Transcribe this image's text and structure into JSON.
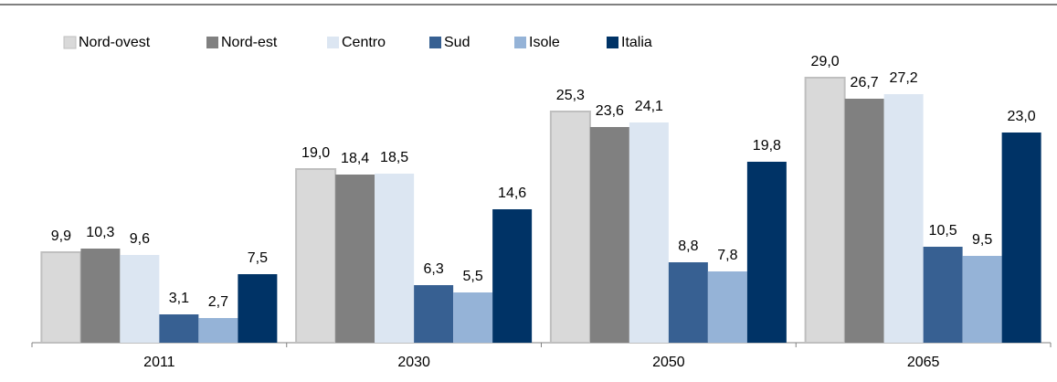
{
  "chart_data": {
    "type": "bar",
    "categories": [
      "2011",
      "2030",
      "2050",
      "2065"
    ],
    "series": [
      {
        "name": "Nord-ovest",
        "color": "#d9d9d9",
        "values": [
          9.9,
          19.0,
          25.3,
          29.0
        ],
        "value_labels": [
          "9,9",
          "19,0",
          "25,3",
          "29,0"
        ]
      },
      {
        "name": "Nord-est",
        "color": "#808080",
        "values": [
          10.3,
          18.4,
          23.6,
          26.7
        ],
        "value_labels": [
          "10,3",
          "18,4",
          "23,6",
          "26,7"
        ]
      },
      {
        "name": "Centro",
        "color": "#dce6f2",
        "values": [
          9.6,
          18.5,
          24.1,
          27.2
        ],
        "value_labels": [
          "9,6",
          "18,5",
          "24,1",
          "27,2"
        ]
      },
      {
        "name": "Sud",
        "color": "#376092",
        "values": [
          3.1,
          6.3,
          8.8,
          10.5
        ],
        "value_labels": [
          "3,1",
          "6,3",
          "8,8",
          "10,5"
        ]
      },
      {
        "name": "Isole",
        "color": "#95b3d7",
        "values": [
          2.7,
          5.5,
          7.8,
          9.5
        ],
        "value_labels": [
          "2,7",
          "5,5",
          "7,8",
          "9,5"
        ]
      },
      {
        "name": "Italia",
        "color": "#003366",
        "values": [
          7.5,
          14.6,
          19.8,
          23.0
        ],
        "value_labels": [
          "7,5",
          "14,6",
          "19,8",
          "23,0"
        ]
      }
    ],
    "legend": "top"
  }
}
